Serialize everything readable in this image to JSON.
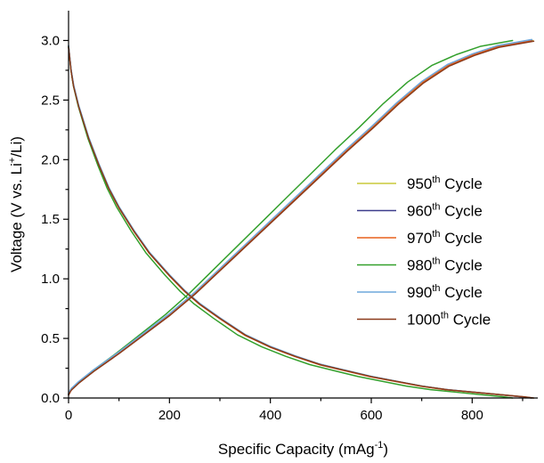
{
  "chart_data": {
    "type": "line",
    "xlabel": {
      "text": "Specific Capacity (mAg",
      "sup": "-1",
      "suffix": ")"
    },
    "ylabel": {
      "text": "Voltage (V vs. Li",
      "sup": "+",
      "suffix": "/Li)"
    },
    "xlim": [
      0,
      930
    ],
    "ylim": [
      0,
      3.25
    ],
    "xticks": [
      0,
      200,
      400,
      600,
      800
    ],
    "xtick_labels": [
      "0",
      "200",
      "400",
      "600",
      "800"
    ],
    "yticks": [
      0.0,
      0.5,
      1.0,
      1.5,
      2.0,
      2.5,
      3.0
    ],
    "ytick_labels": [
      "0.0",
      "0.5",
      "1.0",
      "1.5",
      "2.0",
      "2.5",
      "3.0"
    ],
    "legend_position": "center-right",
    "series": [
      {
        "name_num": "950",
        "name_sup": "th",
        "name_rest": " Cycle",
        "color": "#c8c83a",
        "capacity_max": 920
      },
      {
        "name_num": "960",
        "name_sup": "th",
        "name_rest": " Cycle",
        "color": "#3c3c8c",
        "capacity_max": 918
      },
      {
        "name_num": "970",
        "name_sup": "th",
        "name_rest": " Cycle",
        "color": "#e8601c",
        "capacity_max": 917
      },
      {
        "name_num": "980",
        "name_sup": "th",
        "name_rest": " Cycle",
        "color": "#33a02c",
        "capacity_max": 880
      },
      {
        "name_num": "990",
        "name_sup": "th",
        "name_rest": " Cycle",
        "color": "#6fa8dc",
        "capacity_max": 918
      },
      {
        "name_num": "1000",
        "name_sup": "th",
        "name_rest": " Cycle",
        "color": "#8b3a1a",
        "capacity_max": 922
      }
    ],
    "discharge_shape": [
      [
        0,
        2.95
      ],
      [
        5,
        2.75
      ],
      [
        10,
        2.62
      ],
      [
        20,
        2.45
      ],
      [
        40,
        2.18
      ],
      [
        60,
        1.96
      ],
      [
        80,
        1.76
      ],
      [
        100,
        1.6
      ],
      [
        130,
        1.4
      ],
      [
        160,
        1.22
      ],
      [
        200,
        1.03
      ],
      [
        230,
        0.9
      ],
      [
        260,
        0.79
      ],
      [
        300,
        0.67
      ],
      [
        350,
        0.53
      ],
      [
        400,
        0.43
      ],
      [
        450,
        0.35
      ],
      [
        500,
        0.28
      ],
      [
        550,
        0.23
      ],
      [
        600,
        0.18
      ],
      [
        650,
        0.14
      ],
      [
        700,
        0.1
      ],
      [
        750,
        0.07
      ],
      [
        800,
        0.05
      ],
      [
        850,
        0.03
      ],
      [
        900,
        0.01
      ],
      [
        920,
        0.0
      ]
    ],
    "charge_shape": [
      [
        0,
        0.03
      ],
      [
        5,
        0.07
      ],
      [
        20,
        0.13
      ],
      [
        50,
        0.23
      ],
      [
        100,
        0.38
      ],
      [
        150,
        0.54
      ],
      [
        200,
        0.7
      ],
      [
        250,
        0.88
      ],
      [
        300,
        1.08
      ],
      [
        350,
        1.28
      ],
      [
        400,
        1.48
      ],
      [
        450,
        1.68
      ],
      [
        500,
        1.88
      ],
      [
        550,
        2.08
      ],
      [
        600,
        2.27
      ],
      [
        650,
        2.47
      ],
      [
        700,
        2.65
      ],
      [
        750,
        2.79
      ],
      [
        800,
        2.88
      ],
      [
        850,
        2.95
      ],
      [
        917,
        3.0
      ]
    ]
  }
}
